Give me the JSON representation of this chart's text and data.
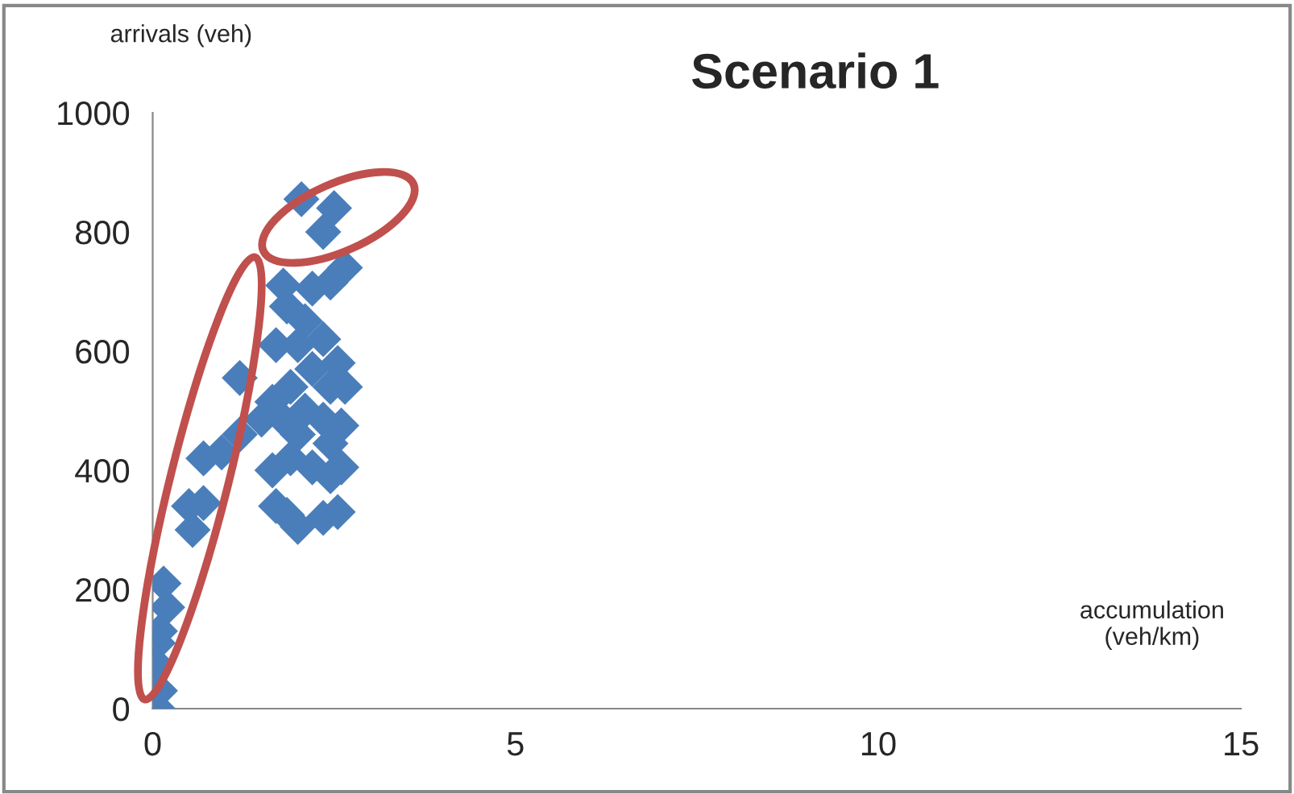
{
  "chart_data": {
    "type": "scatter",
    "title": "Scenario 1",
    "xlabel": "accumulation\n(veh/km)",
    "ylabel": "arrivals (veh)",
    "xlim": [
      0,
      15
    ],
    "xticks": [
      0,
      5,
      10,
      15
    ],
    "ylim": [
      0,
      1000
    ],
    "yticks": [
      0,
      200,
      400,
      600,
      800,
      1000
    ],
    "grid": false,
    "legend": false,
    "marker": "diamond",
    "series": [
      {
        "color": "#4a7ebb",
        "x": [
          2.05,
          2.5,
          2.35,
          1.2,
          0.7,
          0.95,
          0.5,
          0.7,
          0.55,
          0.15,
          0.2,
          0.1,
          0.07,
          0.05,
          0.07,
          0.1,
          1.8,
          1.85,
          2.2,
          2.45,
          2.65,
          2.1,
          2.35,
          2.0,
          2.55,
          2.2,
          1.9,
          2.45,
          2.65,
          2.1,
          1.8,
          2.35,
          2.6,
          2.0,
          2.45,
          1.9,
          2.2,
          2.6,
          1.65,
          2.45,
          1.7,
          1.85,
          2.0,
          2.35,
          2.55,
          1.2,
          1.5,
          1.65,
          1.7
        ],
        "values": [
          855,
          840,
          800,
          555,
          420,
          430,
          340,
          345,
          300,
          210,
          170,
          130,
          110,
          75,
          0,
          30,
          710,
          675,
          705,
          715,
          740,
          650,
          620,
          610,
          580,
          570,
          540,
          540,
          540,
          500,
          485,
          485,
          475,
          460,
          445,
          420,
          405,
          405,
          400,
          390,
          340,
          325,
          305,
          320,
          330,
          460,
          485,
          515,
          610
        ]
      }
    ]
  }
}
